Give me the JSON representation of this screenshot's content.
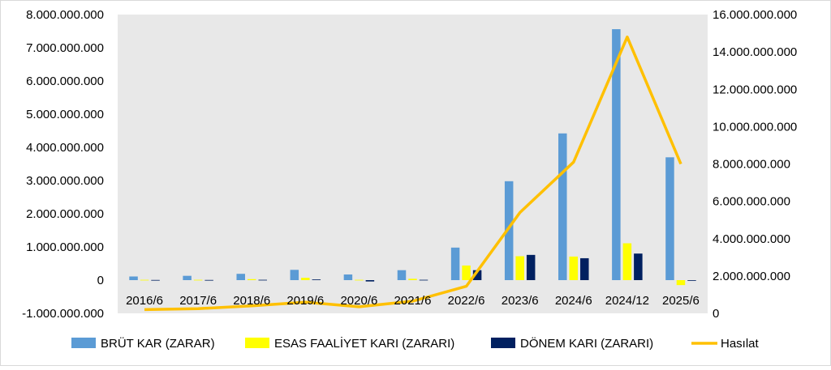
{
  "chart_data": {
    "type": "bar",
    "categories": [
      "2016/6",
      "2017/6",
      "2018/6",
      "2019/6",
      "2020/6",
      "2021/6",
      "2022/6",
      "2023/6",
      "2024/6",
      "2024/12",
      "2025/6"
    ],
    "series": [
      {
        "name": "BRÜT KAR (ZARAR)",
        "type": "bar",
        "axis": "left",
        "color": "#5B9BD5",
        "values": [
          110000000,
          130000000,
          190000000,
          310000000,
          170000000,
          300000000,
          980000000,
          2980000000,
          4420000000,
          7560000000,
          3700000000
        ]
      },
      {
        "name": "ESAS FAALİYET KARI (ZARARI)",
        "type": "bar",
        "axis": "left",
        "color": "#FFFF00",
        "values": [
          10000000,
          10000000,
          30000000,
          70000000,
          10000000,
          40000000,
          440000000,
          720000000,
          710000000,
          1110000000,
          -150000000
        ]
      },
      {
        "name": "DÖNEM KARI (ZARARI)",
        "type": "bar",
        "axis": "left",
        "color": "#002060",
        "values": [
          5000000,
          5000000,
          10000000,
          20000000,
          -40000000,
          10000000,
          300000000,
          760000000,
          660000000,
          800000000,
          -20000000
        ]
      },
      {
        "name": "Hasılat",
        "type": "line",
        "axis": "right",
        "color": "#FFC000",
        "values": [
          200000000,
          250000000,
          400000000,
          600000000,
          350000000,
          650000000,
          1450000000,
          5400000000,
          8100000000,
          14800000000,
          8000000000
        ]
      }
    ],
    "y_left": {
      "min": -1000000000,
      "max": 8000000000,
      "step": 1000000000,
      "tick_labels": [
        "-1.000.000.000",
        "0",
        "1.000.000.000",
        "2.000.000.000",
        "3.000.000.000",
        "4.000.000.000",
        "5.000.000.000",
        "6.000.000.000",
        "7.000.000.000",
        "8.000.000.000"
      ]
    },
    "y_right": {
      "min": 0,
      "max": 16000000000,
      "step": 2000000000,
      "tick_labels": [
        "0",
        "2.000.000.000",
        "4.000.000.000",
        "6.000.000.000",
        "8.000.000.000",
        "10.000.000.000",
        "12.000.000.000",
        "14.000.000.000",
        "16.000.000.000"
      ]
    },
    "grid": false,
    "legend_position": "bottom"
  }
}
